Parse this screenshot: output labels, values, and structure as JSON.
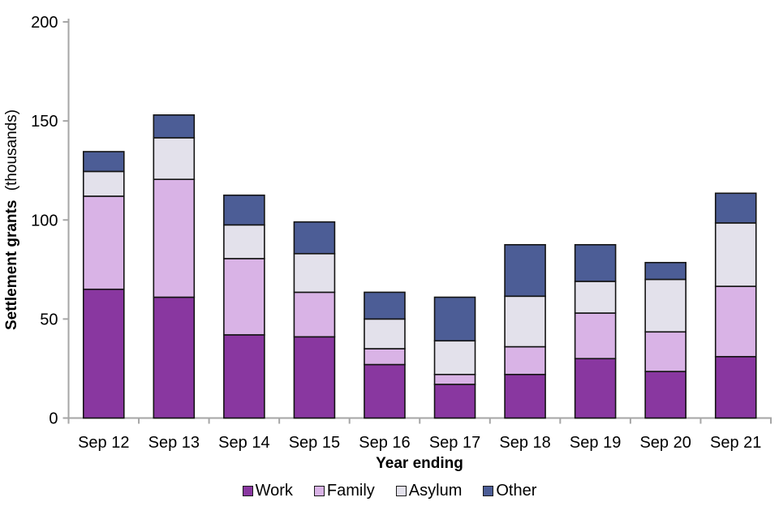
{
  "chart_data": {
    "type": "bar",
    "stacked": true,
    "title": "",
    "xlabel": "Year ending",
    "ylabel": "Settlement grants",
    "ylabel_suffix": "(thousands)",
    "ylim": [
      0,
      200
    ],
    "yticks": [
      0,
      50,
      100,
      150,
      200
    ],
    "grid": false,
    "legend_position": "bottom",
    "categories": [
      "Sep 12",
      "Sep 13",
      "Sep 14",
      "Sep 15",
      "Sep 16",
      "Sep 17",
      "Sep 18",
      "Sep 19",
      "Sep 20",
      "Sep 21"
    ],
    "series": [
      {
        "name": "Work",
        "color": "#8937A0",
        "values": [
          65,
          61,
          42,
          41,
          27,
          17,
          22,
          30,
          23.5,
          31
        ]
      },
      {
        "name": "Family",
        "color": "#D9B3E6",
        "values": [
          47,
          59.5,
          38.5,
          22.5,
          8,
          5,
          14,
          23,
          20,
          35.5
        ]
      },
      {
        "name": "Asylum",
        "color": "#E3E1EB",
        "values": [
          12.5,
          21,
          17,
          19.5,
          15,
          17,
          25.5,
          16,
          26.5,
          32
        ]
      },
      {
        "name": "Other",
        "color": "#4C5D96",
        "values": [
          10,
          11.5,
          15,
          16,
          13.5,
          22,
          26,
          18.5,
          8.5,
          15
        ]
      }
    ],
    "totals": [
      134.5,
      153,
      112.5,
      99,
      63.5,
      61,
      87.5,
      87.5,
      78.5,
      113.5
    ],
    "axis_color": "#A6A6A6",
    "bar_border_color": "#141414",
    "text_color": "#000000"
  }
}
